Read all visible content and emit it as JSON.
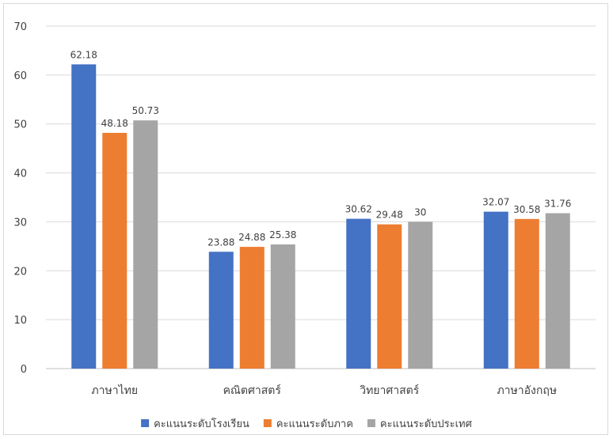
{
  "chart_data": {
    "type": "bar",
    "title": "",
    "xlabel": "",
    "ylabel": "",
    "ylim": [
      0,
      70
    ],
    "yticks": [
      0,
      10,
      20,
      30,
      40,
      50,
      60,
      70
    ],
    "grid": true,
    "legend_position": "bottom",
    "categories": [
      "ภาษาไทย",
      "คณิตศาสตร์",
      "วิทยาศาสตร์",
      "ภาษาอังกฤษ"
    ],
    "series": [
      {
        "name": "คะแนนระดับโรงเรียน",
        "color": "#4472c4",
        "values": [
          62.18,
          23.88,
          30.62,
          32.07
        ],
        "labels": [
          "62.18",
          "23.88",
          "30.62",
          "32.07"
        ]
      },
      {
        "name": "คะแนนระดับภาค",
        "color": "#ed7d31",
        "values": [
          48.18,
          24.88,
          29.48,
          30.58
        ],
        "labels": [
          "48.18",
          "24.88",
          "29.48",
          "30.58"
        ]
      },
      {
        "name": "คะแนนระดับประเทศ",
        "color": "#a5a5a5",
        "values": [
          50.73,
          25.38,
          30,
          31.76
        ],
        "labels": [
          "50.73",
          "25.38",
          "30",
          "31.76"
        ]
      }
    ]
  }
}
